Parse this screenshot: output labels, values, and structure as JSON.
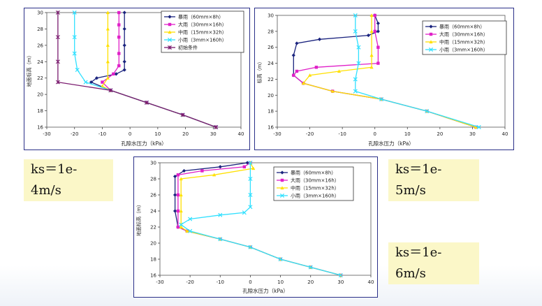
{
  "colors": {
    "frame": "#2a2f88",
    "label_bg": "#fbf7c8"
  },
  "ks_labels": [
    "ks＝1e-4m/s",
    "ks＝1e-5m/s",
    "ks＝1e-6m/s"
  ],
  "chart_data": [
    {
      "type": "line",
      "xlabel": "孔隙水压力（kPa）",
      "ylabel": "地面标高（m）",
      "xlim": [
        -30,
        40
      ],
      "ylim": [
        16,
        30
      ],
      "xticks": [
        -30,
        -20,
        -10,
        0,
        10,
        20,
        30,
        40
      ],
      "yticks": [
        16,
        18,
        20,
        22,
        24,
        26,
        28,
        30
      ],
      "legend": "top-right",
      "series": [
        {
          "name": "暴雨（60mm×8h）",
          "color": "#1a237e",
          "marker": "diamond",
          "points": [
            [
              31,
              16
            ],
            [
              19,
              17.5
            ],
            [
              6,
              19
            ],
            [
              -7,
              20.5
            ],
            [
              -14,
              21.5
            ],
            [
              -12,
              22
            ],
            [
              -5,
              22.5
            ],
            [
              -2,
              23
            ],
            [
              -2,
              24
            ],
            [
              -2,
              26
            ],
            [
              -2,
              28
            ],
            [
              -2,
              30
            ]
          ]
        },
        {
          "name": "大雨（30mm×16h）",
          "color": "#e020c8",
          "marker": "square",
          "points": [
            [
              31,
              16
            ],
            [
              19,
              17.5
            ],
            [
              6,
              19
            ],
            [
              -7,
              20.5
            ],
            [
              -10,
              21.5
            ],
            [
              -6,
              22.5
            ],
            [
              -4,
              23.5
            ],
            [
              -4,
              25
            ],
            [
              -4,
              27
            ],
            [
              -4,
              28.5
            ],
            [
              -4,
              30
            ]
          ]
        },
        {
          "name": "中雨（15mm×32h）",
          "color": "#ffe000",
          "marker": "triangle",
          "points": [
            [
              31,
              16
            ],
            [
              19,
              17.5
            ],
            [
              6,
              19
            ],
            [
              -7,
              20.5
            ],
            [
              -10,
              21
            ],
            [
              -8,
              22
            ],
            [
              -8,
              24
            ],
            [
              -8,
              26
            ],
            [
              -8,
              28
            ],
            [
              -8,
              30
            ]
          ]
        },
        {
          "name": "小雨（3mm×160h）",
          "color": "#30e0ff",
          "marker": "x",
          "points": [
            [
              31,
              16
            ],
            [
              19,
              17.5
            ],
            [
              6,
              19
            ],
            [
              -7,
              20.5
            ],
            [
              -16,
              21.5
            ],
            [
              -19,
              23
            ],
            [
              -20,
              25
            ],
            [
              -20,
              27
            ],
            [
              -20,
              30
            ]
          ]
        },
        {
          "name": "初始条件",
          "color": "#7a1a6e",
          "marker": "star",
          "points": [
            [
              31,
              16
            ],
            [
              19,
              17.5
            ],
            [
              6,
              19
            ],
            [
              -7,
              20.5
            ],
            [
              -26,
              21.5
            ],
            [
              -26,
              24
            ],
            [
              -26,
              27
            ],
            [
              -26,
              30
            ]
          ]
        }
      ]
    },
    {
      "type": "line",
      "xlabel": "孔隙水压力（kPa）",
      "ylabel": "标高（m）",
      "xlim": [
        -30,
        40
      ],
      "ylim": [
        16,
        30
      ],
      "xticks": [
        -30,
        -20,
        -10,
        0,
        10,
        20,
        30,
        40
      ],
      "yticks": [
        16,
        18,
        20,
        22,
        24,
        26,
        28,
        30
      ],
      "legend": "top-right",
      "series": [
        {
          "name": "暴雨（60mm×8h）",
          "color": "#1a237e",
          "marker": "diamond",
          "points": [
            [
              31,
              16
            ],
            [
              16,
              18
            ],
            [
              2,
              19.5
            ],
            [
              -13,
              20.5
            ],
            [
              -22,
              21.5
            ],
            [
              -25,
              22.5
            ],
            [
              -25,
              25
            ],
            [
              -24,
              26.5
            ],
            [
              -17,
              27
            ],
            [
              -2,
              27.5
            ],
            [
              1,
              28
            ],
            [
              1,
              29
            ],
            [
              0,
              30
            ]
          ]
        },
        {
          "name": "大雨（30mm×16h）",
          "color": "#e020c8",
          "marker": "square",
          "points": [
            [
              31,
              16
            ],
            [
              16,
              18
            ],
            [
              2,
              19.5
            ],
            [
              -13,
              20.5
            ],
            [
              -22,
              21.5
            ],
            [
              -25,
              22.5
            ],
            [
              -24,
              23
            ],
            [
              -18,
              23.5
            ],
            [
              1,
              24
            ],
            [
              1,
              26
            ],
            [
              0,
              28
            ],
            [
              0,
              30
            ]
          ]
        },
        {
          "name": "中雨（15mm×32h）",
          "color": "#ffe000",
          "marker": "triangle",
          "points": [
            [
              31,
              16
            ],
            [
              16,
              18
            ],
            [
              2,
              19.5
            ],
            [
              -13,
              20.5
            ],
            [
              -22,
              21.5
            ],
            [
              -20,
              22.5
            ],
            [
              -11,
              23
            ],
            [
              -1,
              23.5
            ],
            [
              -1,
              25
            ],
            [
              -1,
              28
            ],
            [
              -1,
              30
            ]
          ]
        },
        {
          "name": "小雨（3mm×160h）",
          "color": "#30e0ff",
          "marker": "x",
          "points": [
            [
              32,
              16
            ],
            [
              16,
              18
            ],
            [
              2,
              19.5
            ],
            [
              -6,
              20.5
            ],
            [
              -6,
              22
            ],
            [
              -5,
              24
            ],
            [
              -5,
              26
            ],
            [
              -6,
              28
            ],
            [
              -6,
              30
            ]
          ]
        }
      ]
    },
    {
      "type": "line",
      "xlabel": "孔隙水压力（kPa）",
      "ylabel": "地面标高（m）",
      "xlim": [
        -30,
        40
      ],
      "ylim": [
        16,
        30
      ],
      "xticks": [
        -30,
        -20,
        -10,
        0,
        10,
        20,
        30,
        40
      ],
      "yticks": [
        16,
        18,
        20,
        22,
        24,
        26,
        28,
        30
      ],
      "legend": "top-right",
      "series": [
        {
          "name": "暴雨（60mm×8h）",
          "color": "#1a237e",
          "marker": "diamond",
          "points": [
            [
              30,
              16
            ],
            [
              20,
              17
            ],
            [
              10,
              18
            ],
            [
              0,
              19.5
            ],
            [
              -10,
              20.5
            ],
            [
              -21,
              21.5
            ],
            [
              -24,
              22
            ],
            [
              -25,
              24
            ],
            [
              -25,
              26
            ],
            [
              -25,
              28.3
            ],
            [
              -22,
              29
            ],
            [
              -10,
              29.5
            ],
            [
              -1,
              30
            ]
          ]
        },
        {
          "name": "大雨（30mm×16h）",
          "color": "#e020c8",
          "marker": "square",
          "points": [
            [
              30,
              16
            ],
            [
              20,
              17
            ],
            [
              10,
              18
            ],
            [
              0,
              19.5
            ],
            [
              -10,
              20.5
            ],
            [
              -21,
              21.5
            ],
            [
              -24,
              22
            ],
            [
              -24,
              24
            ],
            [
              -24,
              26
            ],
            [
              -24,
              28.5
            ],
            [
              -16,
              29
            ],
            [
              -2,
              29.5
            ],
            [
              0,
              30
            ]
          ]
        },
        {
          "name": "中雨（15mm×32h）",
          "color": "#ffe000",
          "marker": "triangle",
          "points": [
            [
              30,
              16
            ],
            [
              20,
              17
            ],
            [
              10,
              18
            ],
            [
              0,
              19.5
            ],
            [
              -10,
              20.5
            ],
            [
              -21,
              21.5
            ],
            [
              -23,
              22
            ],
            [
              -23,
              24
            ],
            [
              -23,
              26
            ],
            [
              -23,
              28
            ],
            [
              -12,
              28.5
            ],
            [
              1,
              29.3
            ],
            [
              0,
              30
            ]
          ]
        },
        {
          "name": "小雨（3mm×160h）",
          "color": "#30e0ff",
          "marker": "x",
          "points": [
            [
              30,
              16
            ],
            [
              20,
              17
            ],
            [
              10,
              18
            ],
            [
              0,
              19.5
            ],
            [
              -10,
              20.5
            ],
            [
              -20,
              21.5
            ],
            [
              -23,
              22.3
            ],
            [
              -20,
              23
            ],
            [
              -10,
              23.5
            ],
            [
              -2,
              23.8
            ],
            [
              0,
              24.5
            ],
            [
              0,
              26
            ],
            [
              0,
              28
            ],
            [
              0,
              30
            ]
          ]
        }
      ]
    }
  ]
}
